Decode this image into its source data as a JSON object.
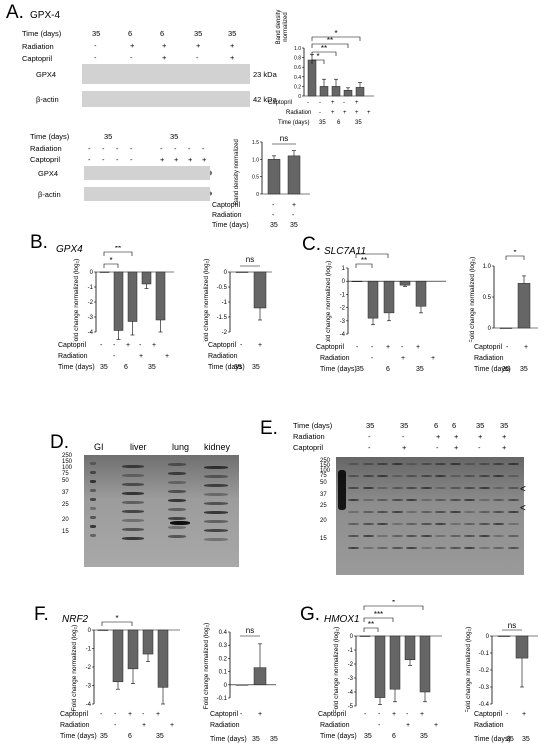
{
  "panelA": {
    "letter": "A.",
    "title": "GPX-4",
    "blot1": {
      "rows": [
        "Time (days)",
        "Radiation",
        "Captopril"
      ],
      "time": [
        "35",
        "6",
        "6",
        "35",
        "35"
      ],
      "radiation": [
        "-",
        "+",
        "+",
        "+",
        "+"
      ],
      "captopril": [
        "-",
        "-",
        "+",
        "-",
        "+"
      ],
      "bands": [
        "GPX4",
        "β-actin"
      ],
      "kda": [
        "23 kDa",
        "42 kDa"
      ]
    },
    "chart1": {
      "ylabel": "Band density normalized",
      "yticks": [
        "0",
        "0.2",
        "0.4",
        "0.6",
        "0.8",
        "1.0"
      ],
      "stars": [
        "*",
        "**",
        "**",
        "*"
      ],
      "rows": [
        "Captopril",
        "Radiation",
        "Time (days)"
      ],
      "cap": [
        "-",
        "-",
        "+",
        "-",
        "+"
      ],
      "rad": [
        "-",
        "+",
        "+",
        "+",
        "+"
      ],
      "time": [
        "35",
        "6",
        "35"
      ]
    },
    "blot2": {
      "rows": [
        "Time (days)",
        "Radiation",
        "Captopril"
      ],
      "time": [
        "35",
        "35"
      ],
      "bands": [
        "GPX4",
        "β-actin"
      ]
    },
    "chart2": {
      "ylabel": "Band density normalized",
      "yticks": [
        "0",
        "0.5",
        "1.0",
        "1.5"
      ],
      "ns": "ns",
      "rows": [
        "Captopril",
        "Radiation",
        "Time (days)"
      ],
      "cap": [
        "-",
        "+"
      ],
      "rad": [
        "-",
        "-"
      ],
      "time": [
        "35",
        "35"
      ]
    }
  },
  "panelB": {
    "letter": "B.",
    "gene": "GPX4",
    "ylabel": "Fold change normalized (log₂)",
    "yticks": [
      "0",
      "-1",
      "-2",
      "-3",
      "-4"
    ],
    "yticks2": [
      "0",
      "-0.5",
      "-1",
      "-1.5",
      "-2"
    ],
    "stars": [
      "*",
      "**"
    ],
    "ns": "ns",
    "rows": [
      "Captopril",
      "Radiation",
      "Time (days)"
    ],
    "cap": [
      "-",
      "-",
      "+",
      "-",
      "+"
    ],
    "rad": [
      "-",
      "+",
      "+"
    ],
    "time": [
      "35",
      "6",
      "35"
    ],
    "cap2": [
      "-",
      "+"
    ],
    "rad2": [
      "-",
      "-"
    ],
    "time2": [
      "35",
      "35"
    ]
  },
  "panelC": {
    "letter": "C.",
    "gene": "SLC7A11",
    "ylabel": "Fold change normalized (log₂)",
    "yticks": [
      "1",
      "0",
      "-1",
      "-2",
      "-3",
      "-4"
    ],
    "yticks2": [
      "1.0",
      "0.5",
      "0"
    ],
    "stars": [
      "**",
      "***"
    ],
    "star2": "*",
    "rows": [
      "Captopril",
      "Radiation",
      "Time (days)"
    ],
    "cap": [
      "-",
      "-",
      "+",
      "-",
      "+"
    ],
    "rad": [
      "-",
      "+",
      "+"
    ],
    "time": [
      "35",
      "6",
      "35"
    ],
    "cap2": [
      "-",
      "+"
    ],
    "rad2": [
      "-",
      "-"
    ],
    "time2": [
      "35",
      "35"
    ]
  },
  "panelD": {
    "letter": "D.",
    "lanes": [
      "GI",
      "liver",
      "lung",
      "kidney"
    ],
    "markers": [
      "250",
      "150",
      "100",
      "75",
      "50",
      "37",
      "25",
      "20",
      "15"
    ]
  },
  "panelE": {
    "letter": "E.",
    "rows": [
      "Time (days)",
      "Radiation",
      "Captopril"
    ],
    "time": [
      "35",
      "35",
      "6",
      "6",
      "35",
      "35"
    ],
    "radiation": [
      "-",
      "-",
      "+",
      "+",
      "+",
      "+"
    ],
    "captopril": [
      "-",
      "+",
      "-",
      "+",
      "-",
      "+"
    ],
    "markers": [
      "250",
      "150",
      "100",
      "75",
      "50",
      "37",
      "25",
      "20",
      "15"
    ],
    "arrows": [
      "<",
      "<"
    ]
  },
  "panelF": {
    "letter": "F.",
    "gene": "NRF2",
    "ylabel": "Fold change normalized (log₂)",
    "yticks": [
      "0",
      "-1",
      "-2",
      "-3",
      "-4"
    ],
    "yticks2": [
      "0.4",
      "0.3",
      "0.2",
      "0.1",
      "0",
      "-0.1"
    ],
    "stars": [
      "*"
    ],
    "ns": "ns",
    "rows": [
      "Captopril",
      "Radiation",
      "Time (days)"
    ],
    "cap": [
      "-",
      "-",
      "+",
      "-",
      "+"
    ],
    "rad": [
      "-",
      "+",
      "+"
    ],
    "time": [
      "35",
      "6",
      "35"
    ],
    "cap2": [
      "-",
      "+"
    ],
    "rad2": [
      "-",
      "-"
    ],
    "time2": [
      "35",
      "35"
    ]
  },
  "panelG": {
    "letter": "G.",
    "gene": "HMOX1",
    "ylabel": "Fold change normalized (log₂)",
    "yticks": [
      "0",
      "-1",
      "-2",
      "-3",
      "-4",
      "-5"
    ],
    "yticks2": [
      "0",
      "-0.1",
      "-0.2",
      "-0.3",
      "-0.4"
    ],
    "stars": [
      "**",
      "***",
      "*"
    ],
    "ns": "ns",
    "rows": [
      "Captopril",
      "Radiation",
      "Time (days)"
    ],
    "cap": [
      "-",
      "-",
      "+",
      "-",
      "+"
    ],
    "rad": [
      "-",
      "+",
      "+"
    ],
    "time": [
      "35",
      "6",
      "35"
    ],
    "cap2": [
      "-",
      "+"
    ],
    "rad2": [
      "-",
      "-"
    ],
    "time2": [
      "35",
      "35"
    ]
  },
  "chart_data": [
    {
      "type": "bar",
      "panel": "A-top",
      "ylabel": "Band density normalized",
      "ylim": [
        0,
        1.0
      ],
      "values": [
        0.75,
        0.2,
        0.2,
        0.12,
        0.18
      ]
    },
    {
      "type": "bar",
      "panel": "A-bottom",
      "ylabel": "Band density normalized",
      "ylim": [
        0,
        1.5
      ],
      "values": [
        1.0,
        1.1
      ]
    },
    {
      "type": "bar",
      "panel": "B-left",
      "ylabel": "Fold change normalized (log₂)",
      "ylim": [
        -4,
        0
      ],
      "values": [
        0,
        -3.9,
        -3.3,
        -0.8,
        -3.2
      ]
    },
    {
      "type": "bar",
      "panel": "B-right",
      "ylabel": "Fold change normalized (log₂)",
      "ylim": [
        -2,
        0
      ],
      "values": [
        0,
        -1.2
      ]
    },
    {
      "type": "bar",
      "panel": "C-left",
      "ylabel": "Fold change normalized (log₂)",
      "ylim": [
        -4,
        1
      ],
      "values": [
        0,
        -2.8,
        -2.4,
        -0.3,
        -1.9
      ]
    },
    {
      "type": "bar",
      "panel": "C-right",
      "ylabel": "Fold change normalized (log₂)",
      "ylim": [
        0,
        1.0
      ],
      "values": [
        0,
        0.72
      ]
    },
    {
      "type": "bar",
      "panel": "F-left",
      "ylabel": "Fold change normalized (log₂)",
      "ylim": [
        -4,
        0
      ],
      "values": [
        0,
        -2.8,
        -2.1,
        -1.3,
        -3.1
      ]
    },
    {
      "type": "bar",
      "panel": "F-right",
      "ylabel": "Fold change normalized (log₂)",
      "ylim": [
        -0.1,
        0.4
      ],
      "values": [
        0,
        0.13
      ]
    },
    {
      "type": "bar",
      "panel": "G-left",
      "ylabel": "Fold change normalized (log₂)",
      "ylim": [
        -5,
        0
      ],
      "values": [
        0,
        -4.4,
        -3.8,
        -1.7,
        -4.0
      ]
    },
    {
      "type": "bar",
      "panel": "G-right",
      "ylabel": "Fold change normalized (log₂)",
      "ylim": [
        -0.4,
        0
      ],
      "values": [
        0,
        -0.13
      ]
    }
  ]
}
